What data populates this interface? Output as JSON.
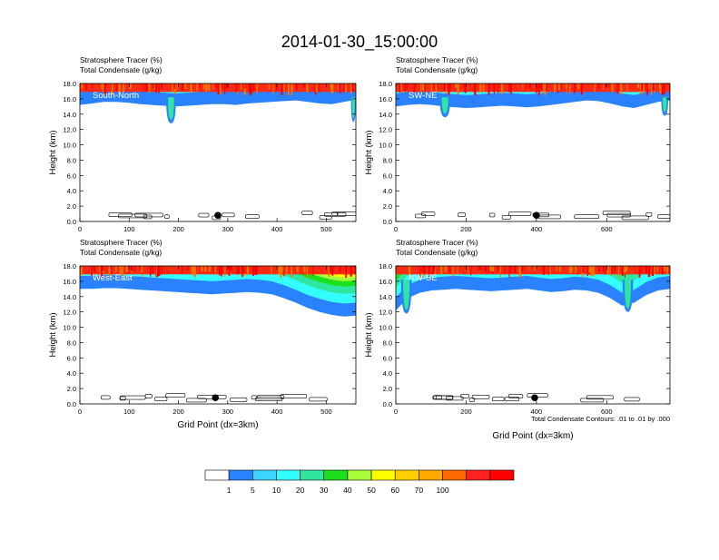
{
  "figure": {
    "title": "2014-01-30_15:00:00",
    "footnote": "Total Condensate Contours: .01 to .01 by .000"
  },
  "colorbar": {
    "colors": [
      "#ffffff",
      "#2b82ff",
      "#3ad6ff",
      "#34ffff",
      "#2fe6a0",
      "#1edf1e",
      "#a8ff3a",
      "#ffff00",
      "#ffd000",
      "#ffa800",
      "#ff6a00",
      "#ff2020",
      "#ff0000"
    ],
    "labels": [
      "1",
      "5",
      "10",
      "20",
      "30",
      "40",
      "50",
      "60",
      "70",
      "100"
    ]
  },
  "chart_data": [
    {
      "type": "heatmap",
      "panel": "South-North",
      "label": "South-North",
      "field_labels": [
        "Stratosphere Tracer   (%)",
        "Total Condensate   (g/kg)"
      ],
      "xlabel": "",
      "ylabel": "Height (km)",
      "xlim": [
        0,
        560
      ],
      "ylim": [
        0,
        18
      ],
      "xticks": [
        0,
        100,
        200,
        300,
        400,
        500
      ],
      "yticks": [
        0.0,
        2.0,
        4.0,
        6.0,
        8.0,
        10.0,
        12.0,
        14.0,
        16.0,
        18.0
      ],
      "tracer_base_km": [
        15.2,
        15.4,
        15.6,
        15.6,
        15.5,
        15.3,
        15.2,
        15.1,
        15.0,
        15.1,
        15.2,
        15.3,
        15.3,
        15.2,
        15.4,
        15.5,
        15.6,
        15.7,
        15.8,
        15.6,
        15.4,
        15.3,
        15.6,
        15.9
      ],
      "extra_intrusions": [
        {
          "x": 185,
          "width": 20,
          "bottom_km": 12.8
        },
        {
          "x": 555,
          "width": 10,
          "bottom_km": 13.0
        }
      ],
      "marker": {
        "x": 280,
        "y_km": 0.8
      }
    },
    {
      "type": "heatmap",
      "panel": "SW-NE",
      "label": "SW-NE",
      "field_labels": [
        "Stratosphere Tracer   (%)",
        "Total Condensate   (g/kg)"
      ],
      "xlabel": "",
      "ylabel": "Height (km)",
      "xlim": [
        0,
        780
      ],
      "ylim": [
        0,
        18
      ],
      "xticks": [
        0,
        200,
        400,
        600
      ],
      "yticks": [
        0.0,
        2.0,
        4.0,
        6.0,
        8.0,
        10.0,
        12.0,
        14.0,
        16.0,
        18.0
      ],
      "tracer_base_km": [
        15.0,
        15.2,
        15.3,
        15.2,
        15.0,
        14.9,
        14.8,
        14.9,
        15.0,
        15.1,
        15.0,
        14.9,
        15.0,
        15.2,
        15.4,
        15.6,
        15.8,
        15.7,
        15.4,
        15.0,
        14.8,
        15.2,
        15.6,
        15.8
      ],
      "extra_intrusions": [
        {
          "x": 140,
          "width": 30,
          "bottom_km": 13.6
        },
        {
          "x": 765,
          "width": 20,
          "bottom_km": 13.8
        }
      ],
      "marker": {
        "x": 400,
        "y_km": 0.8
      }
    },
    {
      "type": "heatmap",
      "panel": "West-East",
      "label": "West-East",
      "field_labels": [
        "Stratosphere Tracer   (%)",
        "Total Condensate   (g/kg)"
      ],
      "xlabel": "Grid Point (dx=3km)",
      "ylabel": "Height (km)",
      "xlim": [
        0,
        560
      ],
      "ylim": [
        0,
        18
      ],
      "xticks": [
        0,
        100,
        200,
        300,
        400,
        500
      ],
      "yticks": [
        0.0,
        2.0,
        4.0,
        6.0,
        8.0,
        10.0,
        12.0,
        14.0,
        16.0,
        18.0
      ],
      "tracer_base_km": [
        15.0,
        15.0,
        15.1,
        15.1,
        15.0,
        14.9,
        14.8,
        14.7,
        14.6,
        14.5,
        14.4,
        14.3,
        14.4,
        14.5,
        14.6,
        14.5,
        14.3,
        13.8,
        13.2,
        12.5,
        12.0,
        11.6,
        11.4,
        11.5
      ],
      "extra_intrusions": [],
      "marker": {
        "x": 275,
        "y_km": 0.8
      }
    },
    {
      "type": "heatmap",
      "panel": "NW-SE",
      "label": "NW-SE",
      "field_labels": [
        "Stratosphere Tracer   (%)",
        "Total Condensate   (g/kg)"
      ],
      "xlabel": "Grid Point (dx=3km)",
      "ylabel": "Height (km)",
      "xlim": [
        0,
        780
      ],
      "ylim": [
        0,
        18
      ],
      "xticks": [
        0,
        200,
        400,
        600
      ],
      "yticks": [
        0.0,
        2.0,
        4.0,
        6.0,
        8.0,
        10.0,
        12.0,
        14.0,
        16.0,
        18.0
      ],
      "tracer_base_km": [
        12.2,
        13.8,
        14.5,
        14.8,
        14.9,
        15.0,
        14.9,
        14.8,
        14.7,
        14.8,
        14.9,
        15.0,
        14.8,
        14.6,
        14.7,
        14.9,
        14.8,
        14.5,
        13.8,
        12.8,
        13.2,
        14.2,
        14.8,
        15.0
      ],
      "extra_intrusions": [
        {
          "x": 30,
          "width": 30,
          "bottom_km": 11.8
        },
        {
          "x": 660,
          "width": 30,
          "bottom_km": 12.0
        }
      ],
      "marker": {
        "x": 395,
        "y_km": 0.8
      }
    }
  ]
}
